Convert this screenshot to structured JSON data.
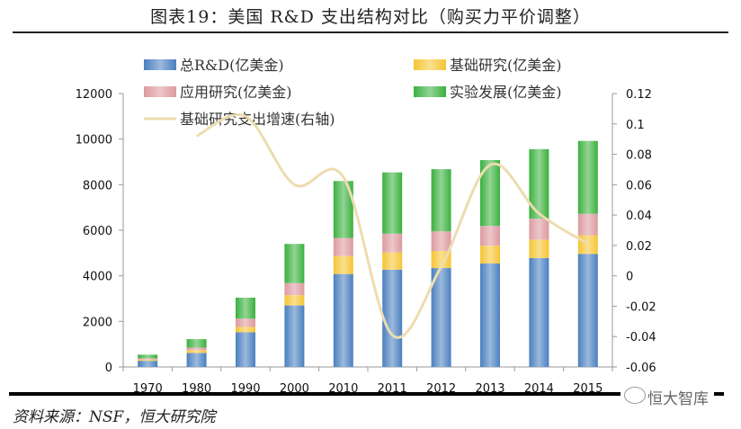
{
  "title": "图表19：美国 R&D 支出结构对比（购买力平价调整）",
  "source": "资料来源：NSF，恒大研究院",
  "watermark": "恒大智库",
  "chart_data": {
    "type": "bar",
    "title": "图表19：美国 R&D 支出结构对比（购买力平价调整）",
    "categories": [
      "1970",
      "1980",
      "1990",
      "2000",
      "2010",
      "2011",
      "2012",
      "2013",
      "2014",
      "2015"
    ],
    "series": [
      {
        "name": "总R&D(亿美金)",
        "kind": "bar",
        "stack": "total",
        "color": "#4a7fc0",
        "values": [
          270,
          610,
          1520,
          2700,
          4080,
          4270,
          4340,
          4540,
          4780,
          4960
        ]
      },
      {
        "name": "基础研究(亿美金)",
        "kind": "bar",
        "stack": "parts",
        "color": "#f5c534",
        "values": [
          50,
          130,
          240,
          450,
          790,
          760,
          750,
          780,
          800,
          820
        ]
      },
      {
        "name": "应用研究(亿美金)",
        "kind": "bar",
        "stack": "parts",
        "color": "#dc9a9f",
        "values": [
          60,
          110,
          360,
          530,
          790,
          820,
          860,
          870,
          930,
          940
        ]
      },
      {
        "name": "实验发展(亿美金)",
        "kind": "bar",
        "stack": "parts",
        "color": "#3ab03e",
        "values": [
          160,
          370,
          920,
          1720,
          2500,
          2690,
          2730,
          2890,
          3050,
          3200
        ]
      },
      {
        "name": "基础研究支出增速(右轴)",
        "kind": "line",
        "axis": "right",
        "color": "#eddcb0",
        "values": [
          null,
          0.092,
          0.105,
          0.06,
          0.065,
          -0.039,
          0.006,
          0.073,
          0.041,
          0.021
        ]
      }
    ],
    "yleft": {
      "lim": [
        0,
        12000
      ],
      "ticks": [
        0,
        2000,
        4000,
        6000,
        8000,
        10000,
        12000
      ]
    },
    "yright": {
      "lim": [
        -0.06,
        0.12
      ],
      "ticks": [
        -0.06,
        -0.04,
        -0.02,
        0,
        0.02,
        0.04,
        0.06,
        0.08,
        0.1,
        0.12
      ]
    },
    "legend": "top",
    "grid": false
  }
}
